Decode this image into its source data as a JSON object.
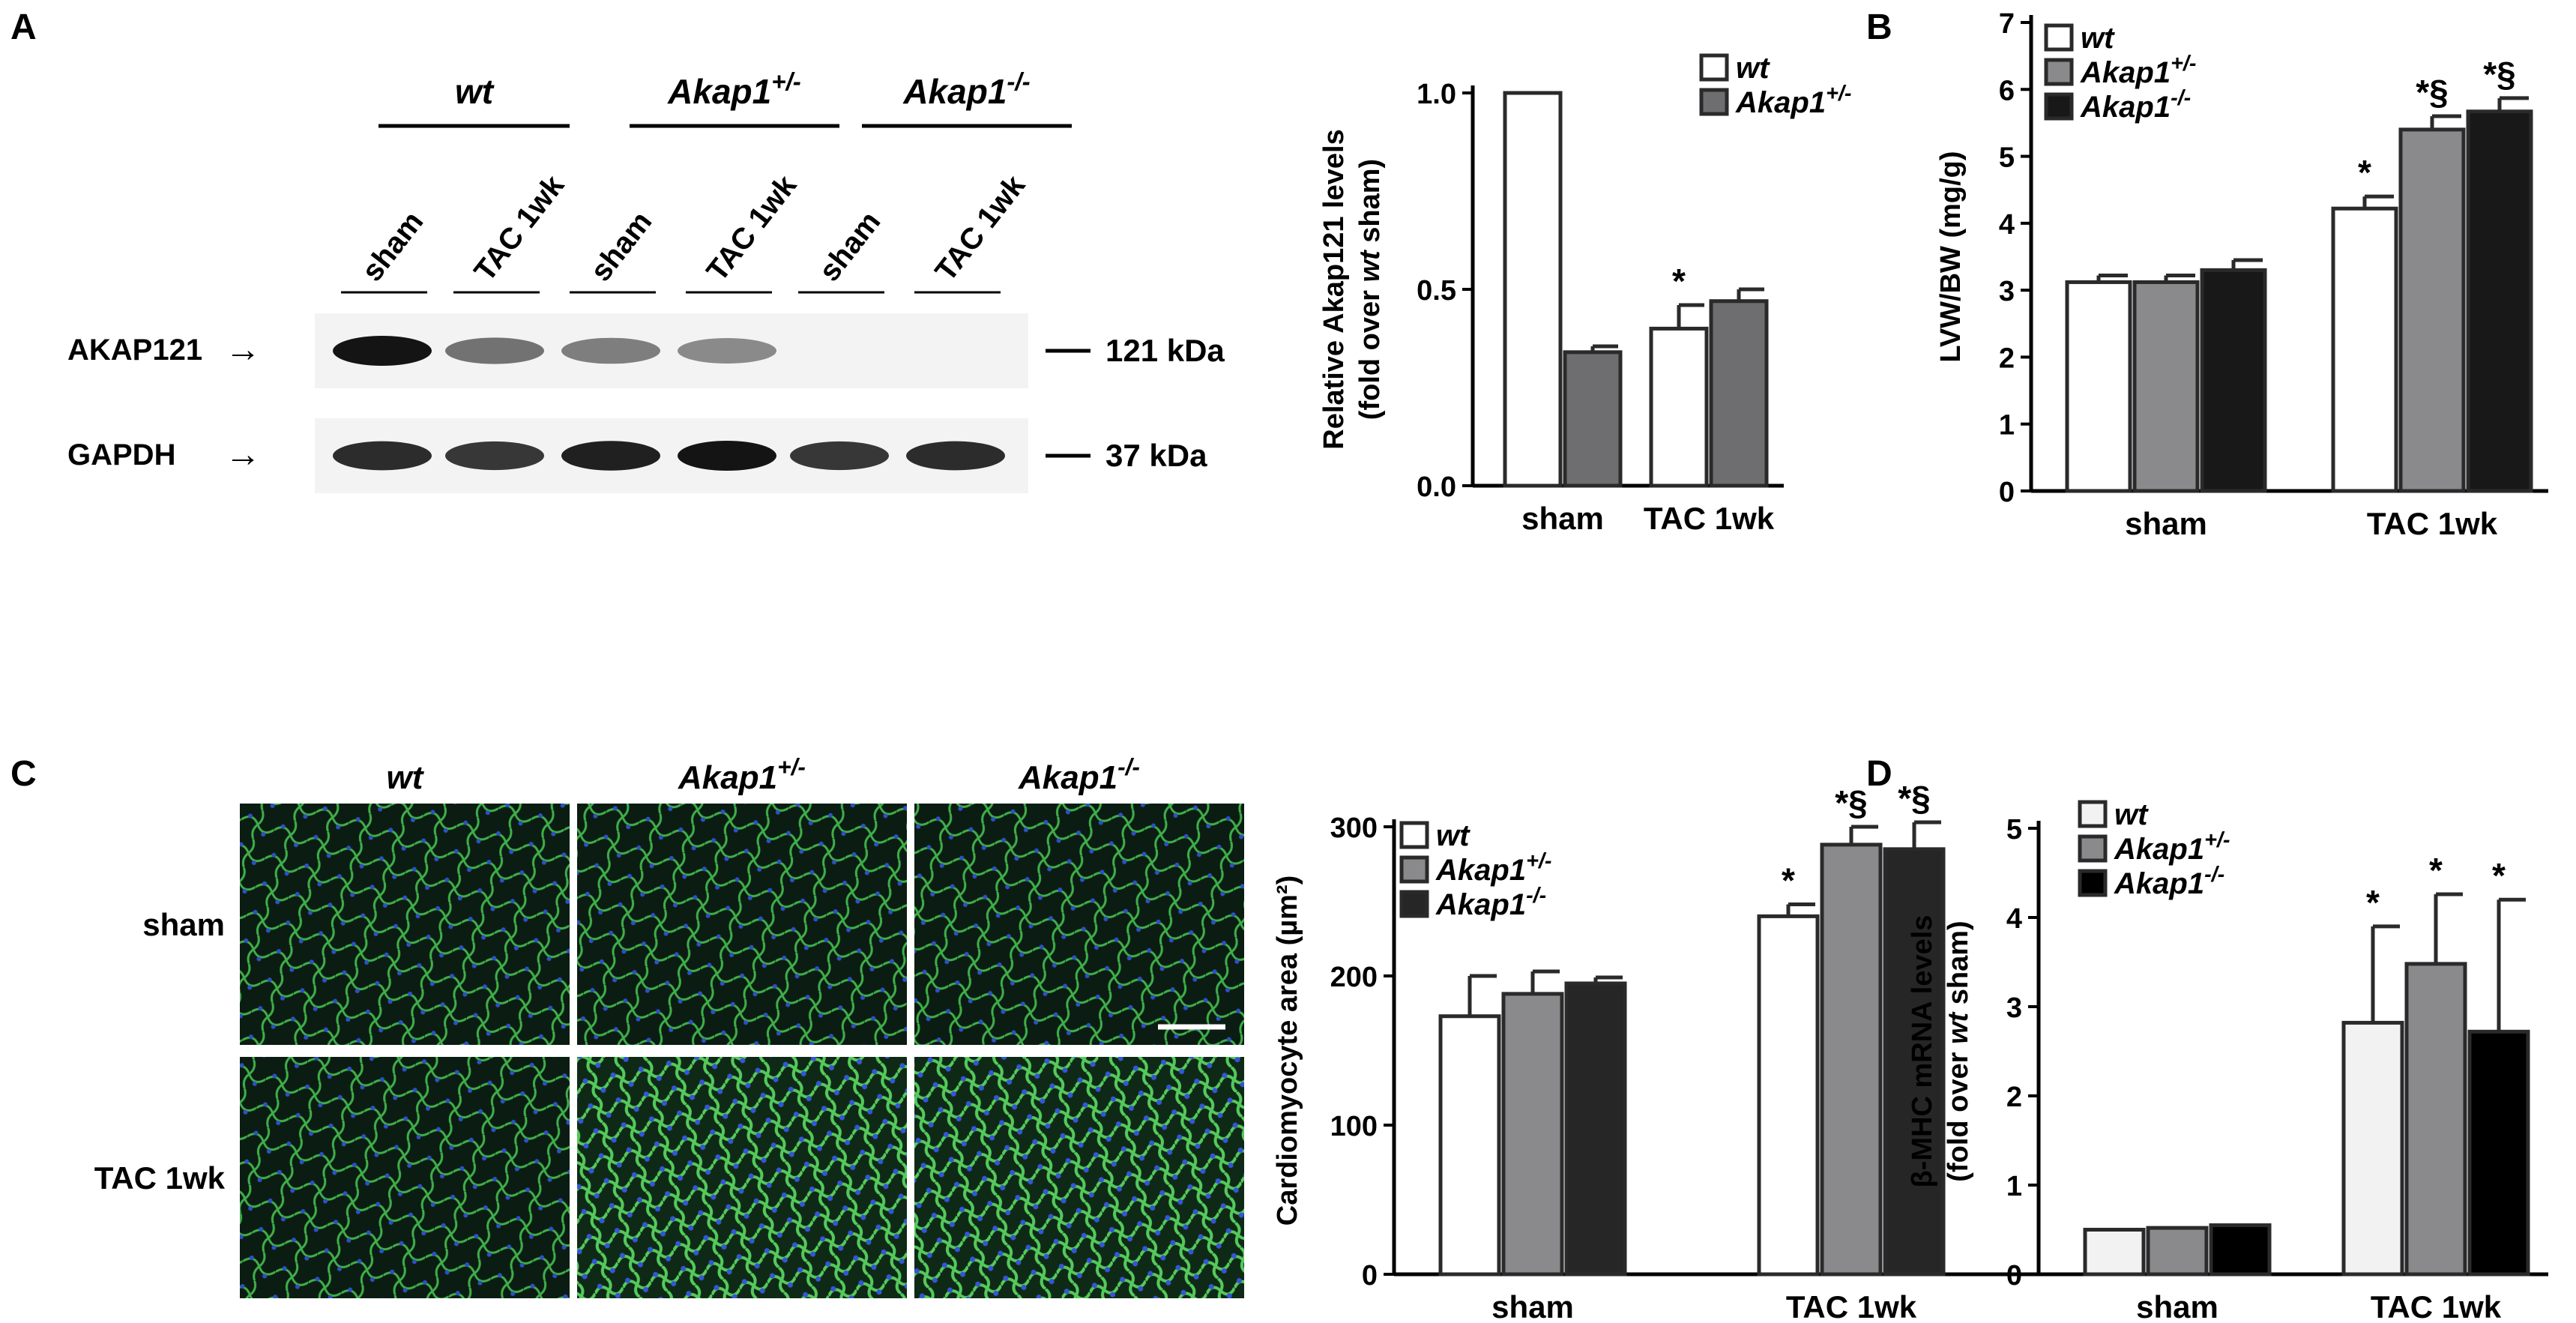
{
  "panels": {
    "A": "A",
    "B": "B",
    "C": "C",
    "D": "D"
  },
  "blot": {
    "groups": [
      {
        "name": "wt",
        "sup": ""
      },
      {
        "name": "Akap1",
        "sup": "+/-"
      },
      {
        "name": "Akap1",
        "sup": "-/-"
      }
    ],
    "lanes": [
      "sham",
      "TAC 1wk",
      "sham",
      "TAC 1wk",
      "sham",
      "TAC 1wk"
    ],
    "rows": [
      {
        "label": "AKAP121",
        "marker": "121 kDa",
        "band_intensity": [
          1.0,
          0.6,
          0.55,
          0.5,
          0.0,
          0.0
        ]
      },
      {
        "label": "GAPDH",
        "marker": "37 kDa",
        "band_intensity": [
          0.9,
          0.85,
          0.95,
          1.0,
          0.85,
          0.9
        ]
      }
    ],
    "arrow": "→"
  },
  "micro": {
    "columns": [
      {
        "name": "wt",
        "sup": ""
      },
      {
        "name": "Akap1",
        "sup": "+/-"
      },
      {
        "name": "Akap1",
        "sup": "-/-"
      }
    ],
    "rows": [
      "sham",
      "TAC 1wk"
    ],
    "scale_bar": true
  },
  "chart_data": [
    {
      "id": "A-bar",
      "type": "bar",
      "categories": [
        "sham",
        "TAC 1wk"
      ],
      "ylabel": "Relative Akap121 levels",
      "ylabel2_parts": [
        "(fold over ",
        "wt",
        " sham)"
      ],
      "ylim": [
        0,
        1.0
      ],
      "yticks": [
        "0.0",
        "0.5",
        "1.0"
      ],
      "series": [
        {
          "name": "wt",
          "sup": "",
          "color": "#ffffff",
          "values": [
            1.0,
            0.4
          ],
          "errors": [
            0,
            0.06
          ]
        },
        {
          "name": "Akap1",
          "sup": "+/-",
          "color": "#6e6e70",
          "values": [
            0.34,
            0.47
          ],
          "errors": [
            0.015,
            0.03
          ]
        }
      ],
      "annotations": [
        {
          "category": 1,
          "series": 0,
          "text": "*"
        }
      ]
    },
    {
      "id": "B-bar",
      "type": "bar",
      "categories": [
        "sham",
        "TAC 1wk"
      ],
      "ylabel": "LVW/BW (mg/g)",
      "ylim": [
        0,
        7
      ],
      "yticks": [
        "0",
        "1",
        "2",
        "3",
        "4",
        "5",
        "6",
        "7"
      ],
      "series": [
        {
          "name": "wt",
          "sup": "",
          "color": "#ffffff",
          "values": [
            3.12,
            4.22
          ],
          "errors": [
            0.1,
            0.18
          ]
        },
        {
          "name": "Akap1",
          "sup": "+/-",
          "color": "#8a8a8c",
          "values": [
            3.12,
            5.4
          ],
          "errors": [
            0.1,
            0.2
          ]
        },
        {
          "name": "Akap1",
          "sup": "-/-",
          "color": "#181818",
          "values": [
            3.3,
            5.67
          ],
          "errors": [
            0.15,
            0.2
          ]
        }
      ],
      "annotations": [
        {
          "category": 1,
          "series": 0,
          "text": "*"
        },
        {
          "category": 1,
          "series": 1,
          "text": "*§"
        },
        {
          "category": 1,
          "series": 2,
          "text": "*§"
        }
      ]
    },
    {
      "id": "C-bar",
      "type": "bar",
      "categories": [
        "sham",
        "TAC 1wk"
      ],
      "ylabel": "Cardiomyocyte area (µm²)",
      "ylim": [
        0,
        300
      ],
      "yticks": [
        "0",
        "100",
        "200",
        "300"
      ],
      "series": [
        {
          "name": "wt",
          "sup": "",
          "color": "#ffffff",
          "values": [
            173,
            240
          ],
          "errors": [
            27,
            8
          ]
        },
        {
          "name": "Akap1",
          "sup": "+/-",
          "color": "#8a8a8c",
          "values": [
            188,
            288
          ],
          "errors": [
            15,
            12
          ]
        },
        {
          "name": "Akap1",
          "sup": "-/-",
          "color": "#262626",
          "values": [
            195,
            285
          ],
          "errors": [
            4,
            18
          ]
        }
      ],
      "annotations": [
        {
          "category": 1,
          "series": 0,
          "text": "*"
        },
        {
          "category": 1,
          "series": 1,
          "text": "*§"
        },
        {
          "category": 1,
          "series": 2,
          "text": "*§"
        }
      ]
    },
    {
      "id": "D-bar",
      "type": "bar",
      "categories": [
        "sham",
        "TAC 1wk"
      ],
      "ylabel": "β-MHC mRNA levels",
      "ylabel2_parts": [
        "(fold over ",
        "wt",
        " sham)"
      ],
      "ylim": [
        0,
        5
      ],
      "yticks": [
        "0",
        "1",
        "2",
        "3",
        "4",
        "5"
      ],
      "series": [
        {
          "name": "wt",
          "sup": "",
          "color": "#f2f2f2",
          "values": [
            0.5,
            2.82
          ],
          "errors": [
            0,
            1.08
          ]
        },
        {
          "name": "Akap1",
          "sup": "+/-",
          "color": "#8a8a8c",
          "values": [
            0.52,
            3.48
          ],
          "errors": [
            0,
            0.78
          ]
        },
        {
          "name": "Akap1",
          "sup": "-/-",
          "color": "#000000",
          "values": [
            0.55,
            2.72
          ],
          "errors": [
            0,
            1.48
          ]
        }
      ],
      "annotations": [
        {
          "category": 1,
          "series": 0,
          "text": "*"
        },
        {
          "category": 1,
          "series": 1,
          "text": "*"
        },
        {
          "category": 1,
          "series": 2,
          "text": "*"
        }
      ]
    }
  ]
}
